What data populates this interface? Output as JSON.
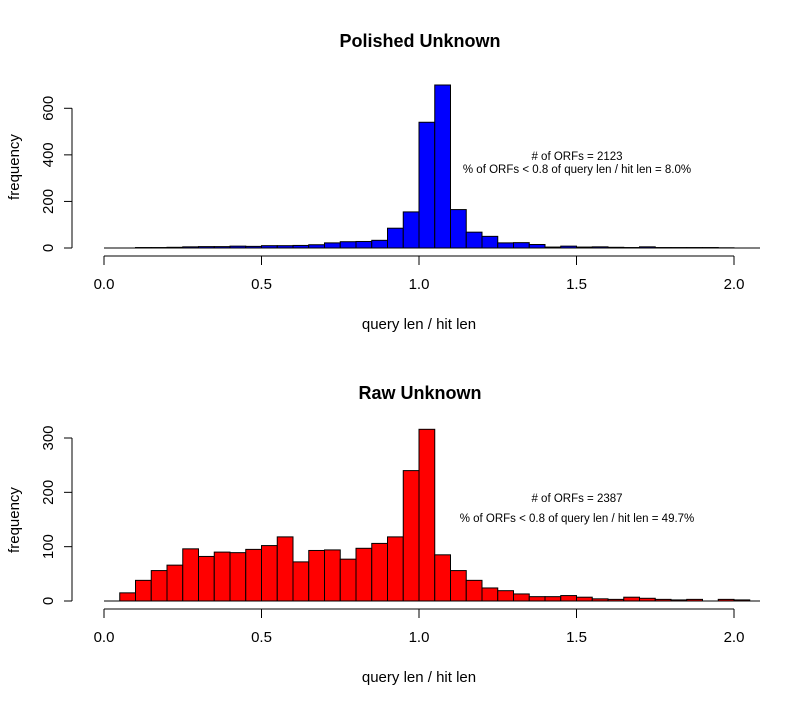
{
  "chart_data": [
    {
      "type": "bar",
      "title": "Polished Unknown",
      "xlabel": "query len / hit len",
      "ylabel": "frequency",
      "color": "#0000ff",
      "bin_width": 0.05,
      "bin_start": 0.0,
      "xlim": [
        0.0,
        2.0
      ],
      "ylim": [
        0,
        700
      ],
      "x_ticks": [
        "0.0",
        "0.5",
        "1.0",
        "1.5",
        "2.0"
      ],
      "y_ticks": [
        "0",
        "200",
        "400",
        "600"
      ],
      "values": [
        0,
        0,
        2,
        2,
        3,
        5,
        6,
        6,
        8,
        7,
        10,
        10,
        11,
        14,
        22,
        27,
        28,
        33,
        85,
        155,
        540,
        700,
        165,
        68,
        50,
        22,
        23,
        15,
        4,
        8,
        4,
        5,
        3,
        2,
        5,
        2,
        2,
        2,
        2,
        1
      ],
      "annotations": [
        "# of ORFs = 2123",
        "% of ORFs < 0.8 of query len / hit len = 8.0%"
      ],
      "grid": false,
      "legend": "none"
    },
    {
      "type": "bar",
      "title": "Raw Unknown",
      "xlabel": "query len / hit len",
      "ylabel": "frequency",
      "color": "#ff0000",
      "bin_width": 0.05,
      "bin_start": 0.0,
      "xlim": [
        0.0,
        2.0
      ],
      "ylim": [
        0,
        300
      ],
      "x_ticks": [
        "0.0",
        "0.5",
        "1.0",
        "1.5",
        "2.0"
      ],
      "y_ticks": [
        "0",
        "100",
        "200",
        "300"
      ],
      "values": [
        0,
        15,
        38,
        56,
        66,
        96,
        82,
        90,
        89,
        95,
        102,
        118,
        72,
        93,
        94,
        77,
        97,
        106,
        118,
        240,
        316,
        85,
        56,
        38,
        24,
        19,
        13,
        8,
        8,
        10,
        7,
        4,
        3,
        7,
        5,
        3,
        2,
        3,
        0,
        3,
        2
      ],
      "annotations": [
        "# of ORFs = 2387",
        "% of ORFs < 0.8 of query len / hit len = 49.7%"
      ],
      "grid": false,
      "legend": "none"
    }
  ]
}
